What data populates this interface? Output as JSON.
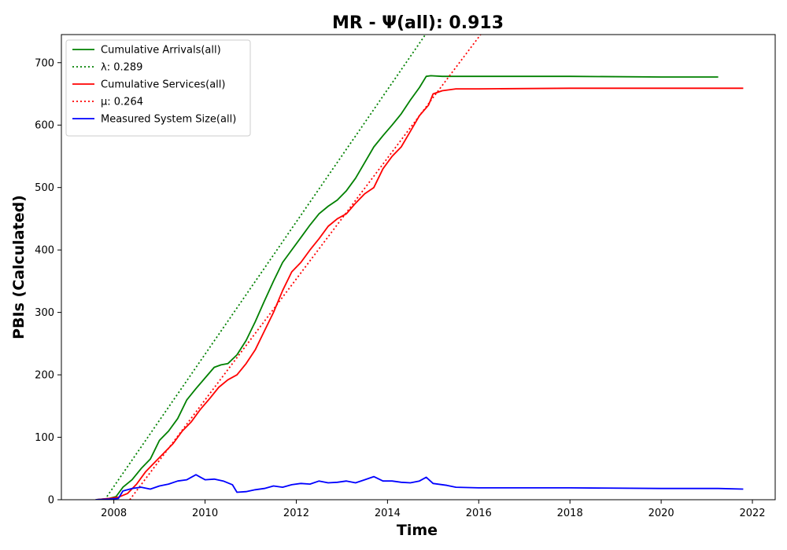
{
  "chart_data": {
    "type": "line",
    "title": "MR -  Ψ(all): 0.913",
    "xlabel": "Time",
    "ylabel": "PBIs (Calculated)",
    "xlim": [
      2006.85,
      2022.5
    ],
    "ylim": [
      0,
      745
    ],
    "xticks": [
      2008,
      2010,
      2012,
      2014,
      2016,
      2018,
      2020,
      2022
    ],
    "yticks": [
      0,
      100,
      200,
      300,
      400,
      500,
      600,
      700
    ],
    "grid": false,
    "legend_position": "top-left",
    "series": [
      {
        "name": "Cumulative Arrivals(all)",
        "color": "#008000",
        "style": "solid",
        "x": [
          2007.6,
          2007.9,
          2008.05,
          2008.2,
          2008.4,
          2008.6,
          2008.8,
          2009.0,
          2009.2,
          2009.4,
          2009.6,
          2009.8,
          2010.0,
          2010.2,
          2010.35,
          2010.5,
          2010.7,
          2010.9,
          2011.1,
          2011.3,
          2011.5,
          2011.7,
          2011.9,
          2012.1,
          2012.3,
          2012.5,
          2012.7,
          2012.9,
          2013.1,
          2013.3,
          2013.5,
          2013.7,
          2013.9,
          2014.1,
          2014.3,
          2014.5,
          2014.7,
          2014.85,
          2014.95,
          2015.2,
          2015.5,
          2016.0,
          2018.0,
          2020.0,
          2021.25
        ],
        "y": [
          0,
          2,
          5,
          20,
          32,
          50,
          65,
          95,
          110,
          130,
          160,
          178,
          195,
          212,
          216,
          218,
          232,
          255,
          285,
          318,
          350,
          380,
          400,
          420,
          440,
          458,
          470,
          480,
          495,
          515,
          540,
          565,
          583,
          600,
          618,
          640,
          660,
          678,
          679,
          678,
          678,
          678,
          678,
          677,
          677
        ]
      },
      {
        "name": "λ: 0.289",
        "color": "#008000",
        "style": "dotted",
        "x": [
          2007.8,
          2016.2
        ],
        "y": [
          0,
          890
        ]
      },
      {
        "name": "Cumulative Services(all)",
        "color": "#ff0000",
        "style": "solid",
        "x": [
          2007.6,
          2007.9,
          2008.1,
          2008.3,
          2008.5,
          2008.7,
          2008.9,
          2009.1,
          2009.3,
          2009.5,
          2009.7,
          2009.9,
          2010.1,
          2010.3,
          2010.5,
          2010.7,
          2010.9,
          2011.1,
          2011.3,
          2011.5,
          2011.7,
          2011.9,
          2012.1,
          2012.3,
          2012.5,
          2012.7,
          2012.9,
          2013.1,
          2013.3,
          2013.5,
          2013.7,
          2013.9,
          2014.1,
          2014.3,
          2014.5,
          2014.7,
          2014.9,
          2015.0,
          2015.2,
          2015.5,
          2016.0,
          2018.0,
          2020.0,
          2021.8
        ],
        "y": [
          0,
          2,
          4,
          10,
          25,
          45,
          60,
          75,
          90,
          110,
          125,
          145,
          162,
          180,
          192,
          200,
          218,
          240,
          270,
          300,
          335,
          365,
          380,
          400,
          418,
          438,
          450,
          458,
          475,
          490,
          500,
          530,
          550,
          565,
          590,
          615,
          632,
          650,
          655,
          658,
          658,
          659,
          659,
          659
        ]
      },
      {
        "name": "μ: 0.264",
        "color": "#ff0000",
        "style": "dotted",
        "x": [
          2008.35,
          2016.3
        ],
        "y": [
          0,
          770
        ]
      },
      {
        "name": "Measured System Size(all)",
        "color": "#0000ff",
        "style": "solid",
        "x": [
          2007.6,
          2007.9,
          2008.1,
          2008.2,
          2008.4,
          2008.6,
          2008.8,
          2009.0,
          2009.2,
          2009.4,
          2009.6,
          2009.8,
          2009.9,
          2010.0,
          2010.2,
          2010.4,
          2010.6,
          2010.7,
          2010.9,
          2011.1,
          2011.3,
          2011.5,
          2011.7,
          2011.9,
          2012.1,
          2012.3,
          2012.5,
          2012.7,
          2012.9,
          2013.1,
          2013.3,
          2013.5,
          2013.7,
          2013.9,
          2014.1,
          2014.3,
          2014.5,
          2014.7,
          2014.85,
          2015.0,
          2015.3,
          2015.5,
          2016.0,
          2018.0,
          2020.0,
          2021.25,
          2021.8
        ],
        "y": [
          0,
          1,
          2,
          14,
          18,
          20,
          17,
          22,
          25,
          30,
          32,
          40,
          36,
          32,
          33,
          30,
          24,
          12,
          13,
          16,
          18,
          22,
          20,
          24,
          26,
          25,
          30,
          27,
          28,
          30,
          27,
          32,
          37,
          30,
          30,
          28,
          27,
          30,
          36,
          26,
          23,
          20,
          19,
          19,
          18,
          18,
          17
        ]
      }
    ]
  }
}
